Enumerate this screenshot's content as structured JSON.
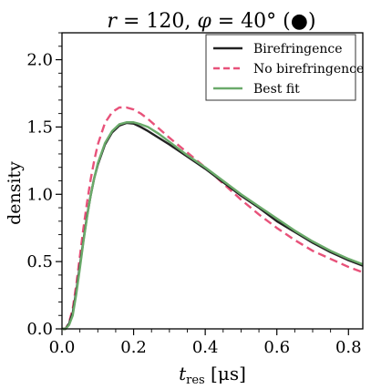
{
  "chart_data": {
    "type": "line",
    "title": "r = 120, φ = 40° (●)",
    "title_parts": {
      "r_var": "r",
      "r_value": " = 120, ",
      "phi_var": "φ",
      "phi_value": " = 40° (",
      "marker": "●",
      "close": ")"
    },
    "xlabel": "t_res [μs]",
    "xlabel_parts": {
      "var": "t",
      "sub": "res",
      "unit": " [μs]"
    },
    "ylabel": "density",
    "xlim": [
      0.0,
      0.84
    ],
    "ylim": [
      0.0,
      2.2
    ],
    "xticks": [
      0.0,
      0.2,
      0.4,
      0.6,
      0.8
    ],
    "xtick_labels": [
      "0.0",
      "0.2",
      "0.4",
      "0.6",
      "0.8"
    ],
    "yticks": [
      0.0,
      0.5,
      1.0,
      1.5,
      2.0
    ],
    "ytick_labels": [
      "0.0",
      "0.5",
      "1.0",
      "1.5",
      "2.0"
    ],
    "grid": false,
    "legend_position": "top-right",
    "series": [
      {
        "name": "Birefringence",
        "color": "#222222",
        "style": "solid",
        "x": [
          0.0,
          0.01,
          0.02,
          0.03,
          0.04,
          0.05,
          0.06,
          0.07,
          0.08,
          0.09,
          0.1,
          0.12,
          0.14,
          0.16,
          0.18,
          0.2,
          0.22,
          0.24,
          0.27,
          0.3,
          0.35,
          0.4,
          0.45,
          0.5,
          0.55,
          0.6,
          0.65,
          0.7,
          0.75,
          0.8,
          0.84
        ],
        "y": [
          0.0,
          0.0,
          0.04,
          0.12,
          0.28,
          0.47,
          0.66,
          0.84,
          0.99,
          1.12,
          1.22,
          1.37,
          1.46,
          1.51,
          1.53,
          1.525,
          1.5,
          1.47,
          1.42,
          1.37,
          1.28,
          1.19,
          1.09,
          0.99,
          0.9,
          0.8,
          0.72,
          0.64,
          0.57,
          0.51,
          0.47
        ]
      },
      {
        "name": "No birefringence",
        "color": "#e8527a",
        "style": "dashed",
        "x": [
          0.0,
          0.01,
          0.02,
          0.03,
          0.04,
          0.05,
          0.06,
          0.07,
          0.08,
          0.09,
          0.1,
          0.12,
          0.14,
          0.16,
          0.18,
          0.2,
          0.22,
          0.24,
          0.27,
          0.3,
          0.35,
          0.4,
          0.45,
          0.5,
          0.55,
          0.6,
          0.65,
          0.7,
          0.75,
          0.8,
          0.84
        ],
        "y": [
          0.0,
          0.0,
          0.05,
          0.15,
          0.33,
          0.54,
          0.75,
          0.94,
          1.11,
          1.25,
          1.37,
          1.53,
          1.61,
          1.645,
          1.645,
          1.63,
          1.6,
          1.56,
          1.49,
          1.42,
          1.31,
          1.2,
          1.08,
          0.96,
          0.85,
          0.75,
          0.66,
          0.58,
          0.52,
          0.46,
          0.42
        ]
      },
      {
        "name": "Best fit",
        "color": "#6aaa6a",
        "style": "solid",
        "x": [
          0.0,
          0.01,
          0.02,
          0.03,
          0.04,
          0.05,
          0.06,
          0.07,
          0.08,
          0.09,
          0.1,
          0.12,
          0.14,
          0.16,
          0.18,
          0.2,
          0.22,
          0.24,
          0.27,
          0.3,
          0.35,
          0.4,
          0.45,
          0.5,
          0.55,
          0.6,
          0.65,
          0.7,
          0.75,
          0.8,
          0.84
        ],
        "y": [
          0.0,
          0.0,
          0.03,
          0.1,
          0.26,
          0.45,
          0.65,
          0.83,
          0.99,
          1.12,
          1.23,
          1.38,
          1.47,
          1.52,
          1.535,
          1.535,
          1.52,
          1.5,
          1.45,
          1.39,
          1.29,
          1.2,
          1.1,
          1.0,
          0.91,
          0.82,
          0.73,
          0.65,
          0.58,
          0.52,
          0.48
        ]
      }
    ]
  }
}
